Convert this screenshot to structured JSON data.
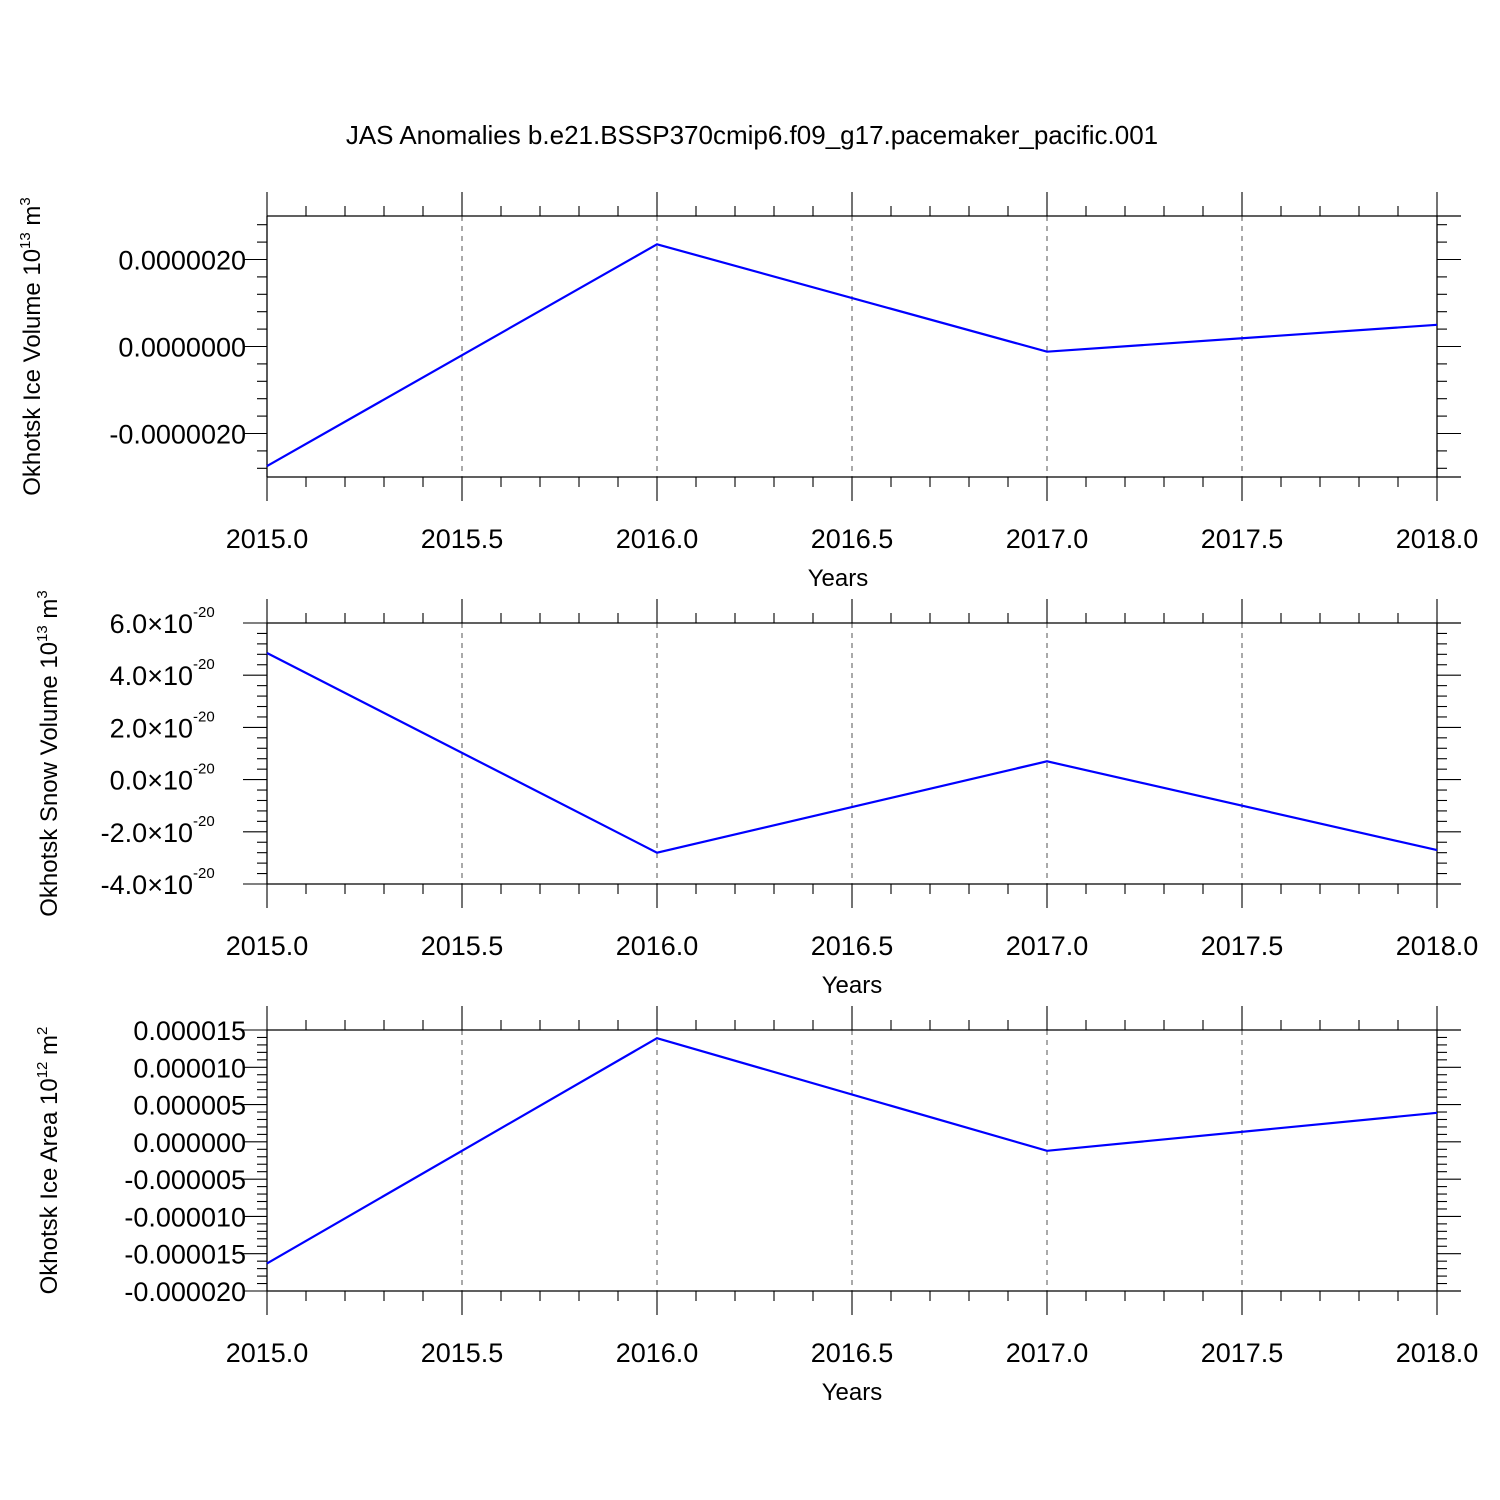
{
  "title": "JAS Anomalies b.e21.BSSP370cmip6.f09_g17.pacemaker_pacific.001",
  "colors": {
    "line": "#0000ff",
    "axis": "#000000",
    "grid": "#555555"
  },
  "chart_data": [
    {
      "type": "line",
      "ylabel": {
        "text": "Okhotsk Ice Volume 10",
        "exp": "13",
        "unit": " m",
        "unit_exp": "3"
      },
      "xlabel": "Years",
      "xlim": [
        2015.0,
        2018.0
      ],
      "ylim": [
        -3e-06,
        3e-06
      ],
      "xticks": [
        2015.0,
        2015.5,
        2016.0,
        2016.5,
        2017.0,
        2017.5,
        2018.0
      ],
      "xtick_labels": [
        "2015.0",
        "2015.5",
        "2016.0",
        "2016.5",
        "2017.0",
        "2017.5",
        "2018.0"
      ],
      "yticks": [
        -2e-06,
        0.0,
        2e-06
      ],
      "ytick_labels": [
        {
          "text": "-0.0000020"
        },
        {
          "text": "0.0000000"
        },
        {
          "text": "0.0000020"
        }
      ],
      "grid": "x-dashed",
      "x": [
        2015.0,
        2016.0,
        2017.0,
        2018.0
      ],
      "y": [
        -2.75e-06,
        2.35e-06,
        -1.2e-07,
        5e-07
      ]
    },
    {
      "type": "line",
      "ylabel": {
        "text": "Okhotsk Snow Volume 10",
        "exp": "13",
        "unit": " m",
        "unit_exp": "3"
      },
      "xlabel": "Years",
      "xlim": [
        2015.0,
        2018.0
      ],
      "ylim": [
        -4e-20,
        6e-20
      ],
      "xticks": [
        2015.0,
        2015.5,
        2016.0,
        2016.5,
        2017.0,
        2017.5,
        2018.0
      ],
      "xtick_labels": [
        "2015.0",
        "2015.5",
        "2016.0",
        "2016.5",
        "2017.0",
        "2017.5",
        "2018.0"
      ],
      "yticks": [
        -4e-20,
        -2e-20,
        0.0,
        2e-20,
        4e-20,
        6e-20
      ],
      "ytick_labels": [
        {
          "text": "-4.0×10",
          "exp": "-20"
        },
        {
          "text": "-2.0×10",
          "exp": "-20"
        },
        {
          "text": "0.0×10",
          "exp": "-20"
        },
        {
          "text": "2.0×10",
          "exp": "-20"
        },
        {
          "text": "4.0×10",
          "exp": "-20"
        },
        {
          "text": "6.0×10",
          "exp": "-20"
        }
      ],
      "grid": "x-dashed",
      "x": [
        2015.0,
        2016.0,
        2017.0,
        2018.0
      ],
      "y": [
        4.85e-20,
        -2.8e-20,
        7e-21,
        -2.7e-20
      ]
    },
    {
      "type": "line",
      "ylabel": {
        "text": "Okhotsk Ice Area 10",
        "exp": "12",
        "unit": " m",
        "unit_exp": "2"
      },
      "xlabel": "Years",
      "xlim": [
        2015.0,
        2018.0
      ],
      "ylim": [
        -2e-05,
        1.5e-05
      ],
      "xticks": [
        2015.0,
        2015.5,
        2016.0,
        2016.5,
        2017.0,
        2017.5,
        2018.0
      ],
      "xtick_labels": [
        "2015.0",
        "2015.5",
        "2016.0",
        "2016.5",
        "2017.0",
        "2017.5",
        "2018.0"
      ],
      "yticks": [
        -2e-05,
        -1.5e-05,
        -1e-05,
        -5e-06,
        0.0,
        5e-06,
        1e-05,
        1.5e-05
      ],
      "ytick_labels": [
        {
          "text": "-0.000020"
        },
        {
          "text": "-0.000015"
        },
        {
          "text": "-0.000010"
        },
        {
          "text": "-0.000005"
        },
        {
          "text": "0.000000"
        },
        {
          "text": "0.000005"
        },
        {
          "text": "0.000010"
        },
        {
          "text": "0.000015"
        }
      ],
      "grid": "x-dashed",
      "x": [
        2015.0,
        2016.0,
        2017.0,
        2018.0
      ],
      "y": [
        -1.63e-05,
        1.39e-05,
        -1.2e-06,
        3.9e-06
      ]
    }
  ]
}
